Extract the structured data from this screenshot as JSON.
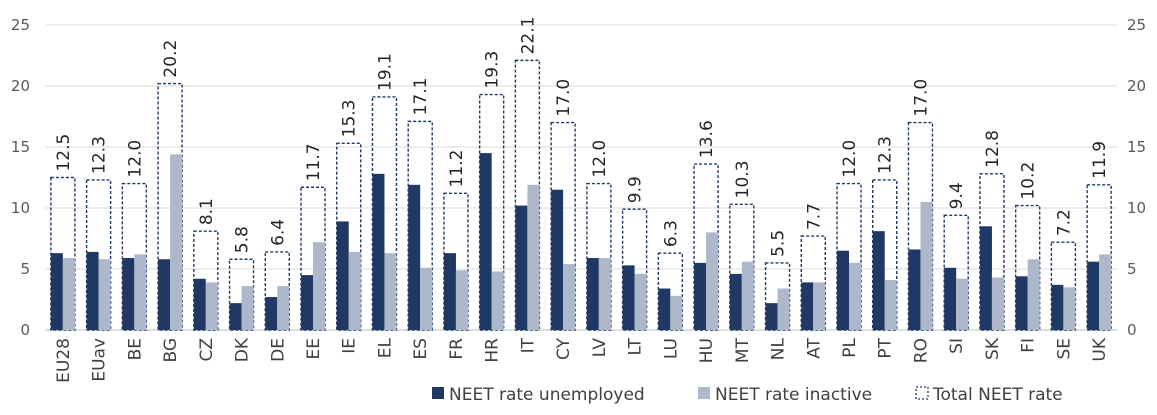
{
  "chart_data": {
    "type": "bar",
    "categories": [
      "EU28",
      "EUav",
      "BE",
      "BG",
      "CZ",
      "DK",
      "DE",
      "EE",
      "IE",
      "EL",
      "ES",
      "FR",
      "HR",
      "IT",
      "CY",
      "LV",
      "LT",
      "LU",
      "HU",
      "MT",
      "NL",
      "AT",
      "PL",
      "PT",
      "RO",
      "SI",
      "SK",
      "FI",
      "SE",
      "UK"
    ],
    "series": [
      {
        "name": "NEET rate unemployed",
        "color": "#203864",
        "values": [
          6.3,
          6.4,
          5.9,
          5.8,
          4.2,
          2.2,
          2.7,
          4.5,
          8.9,
          12.8,
          11.9,
          6.3,
          14.5,
          10.2,
          11.5,
          5.9,
          5.3,
          3.4,
          5.5,
          4.6,
          2.2,
          3.9,
          6.5,
          8.1,
          6.6,
          5.1,
          8.5,
          4.4,
          3.7,
          5.6
        ]
      },
      {
        "name": "NEET rate inactive",
        "color": "#adb9ca",
        "values": [
          5.9,
          5.8,
          6.2,
          14.4,
          3.9,
          3.6,
          3.6,
          7.2,
          6.4,
          6.3,
          5.1,
          4.9,
          4.8,
          11.9,
          5.4,
          5.9,
          4.6,
          2.8,
          8.0,
          5.6,
          3.4,
          3.9,
          5.5,
          4.1,
          10.5,
          4.2,
          4.3,
          5.8,
          3.5,
          6.2
        ]
      },
      {
        "name": "Total NEET rate",
        "color": "#203864",
        "values": [
          12.5,
          12.3,
          12.0,
          20.2,
          8.1,
          5.8,
          6.4,
          11.7,
          15.3,
          19.1,
          17.1,
          11.2,
          19.3,
          22.1,
          17.0,
          12.0,
          9.9,
          6.3,
          13.6,
          10.3,
          5.5,
          7.7,
          12.0,
          12.3,
          17.0,
          9.4,
          12.8,
          10.2,
          7.2,
          11.9
        ],
        "labels": [
          "12.5",
          "12.3",
          "12.0",
          "20.2",
          "8.1",
          "5.8",
          "6.4",
          "11.7",
          "15.3",
          "19.1",
          "17.1",
          "11.2",
          "19.3",
          "22.1",
          "17.0",
          "12.0",
          "9.9",
          "6.3",
          "13.6",
          "10.3",
          "5.5",
          "7.7",
          "12.0",
          "12.3",
          "17.0",
          "9.4",
          "12.8",
          "10.2",
          "7.2",
          "11.9"
        ]
      }
    ],
    "yticks": [
      "0",
      "5",
      "10",
      "15",
      "20",
      "25"
    ],
    "ylim": [
      0,
      25
    ],
    "grid": true,
    "legend": "bottom-right",
    "title": "",
    "xlabel": "",
    "ylabel": ""
  }
}
